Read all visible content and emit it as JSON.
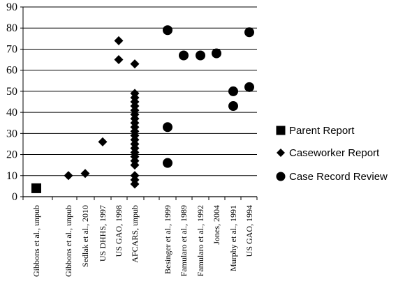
{
  "chart_data": {
    "type": "scatter",
    "title": "",
    "xlabel": "",
    "ylabel": "",
    "ylim": [
      0,
      90
    ],
    "yticks": [
      0,
      10,
      20,
      30,
      40,
      50,
      60,
      70,
      80,
      90
    ],
    "grid": "horizontal",
    "legend_position": "right",
    "categories": [
      "Gibbons et al., unpub",
      "Gibbons et al., unpub",
      "Sedlak et al., 2010",
      "US DHHS, 1997",
      "US GAO, 1998",
      "AFCARS, unpub",
      "Besinger et al., 1999",
      "Famularo et al., 1989",
      "Famularo et al., 1992",
      "Jones, 2004",
      "Murphy et al., 1991",
      "US GAO, 1994"
    ],
    "series": [
      {
        "name": "Parent Report",
        "marker": "square",
        "points": [
          {
            "category": 0,
            "y": 4
          }
        ]
      },
      {
        "name": "Caseworker Report",
        "marker": "diamond",
        "points": [
          {
            "category": 1,
            "y": 10
          },
          {
            "category": 2,
            "y": 11
          },
          {
            "category": 3,
            "y": 26
          },
          {
            "category": 4,
            "y": 74
          },
          {
            "category": 4,
            "y": 65
          },
          {
            "category": 5,
            "y": 63
          },
          {
            "category": 5,
            "y": 49
          },
          {
            "category": 5,
            "y": 47
          },
          {
            "category": 5,
            "y": 45
          },
          {
            "category": 5,
            "y": 43
          },
          {
            "category": 5,
            "y": 41
          },
          {
            "category": 5,
            "y": 39
          },
          {
            "category": 5,
            "y": 37
          },
          {
            "category": 5,
            "y": 35
          },
          {
            "category": 5,
            "y": 33
          },
          {
            "category": 5,
            "y": 31
          },
          {
            "category": 5,
            "y": 29
          },
          {
            "category": 5,
            "y": 27
          },
          {
            "category": 5,
            "y": 25
          },
          {
            "category": 5,
            "y": 23
          },
          {
            "category": 5,
            "y": 21
          },
          {
            "category": 5,
            "y": 19
          },
          {
            "category": 5,
            "y": 17
          },
          {
            "category": 5,
            "y": 15
          },
          {
            "category": 5,
            "y": 10
          },
          {
            "category": 5,
            "y": 8
          },
          {
            "category": 5,
            "y": 6
          }
        ]
      },
      {
        "name": "Case Record Review",
        "marker": "circle",
        "points": [
          {
            "category": 6,
            "y": 79
          },
          {
            "category": 6,
            "y": 33
          },
          {
            "category": 6,
            "y": 16
          },
          {
            "category": 7,
            "y": 67
          },
          {
            "category": 8,
            "y": 67
          },
          {
            "category": 9,
            "y": 68
          },
          {
            "category": 10,
            "y": 50
          },
          {
            "category": 10,
            "y": 43
          },
          {
            "category": 11,
            "y": 78
          },
          {
            "category": 11,
            "y": 52
          }
        ]
      }
    ]
  }
}
